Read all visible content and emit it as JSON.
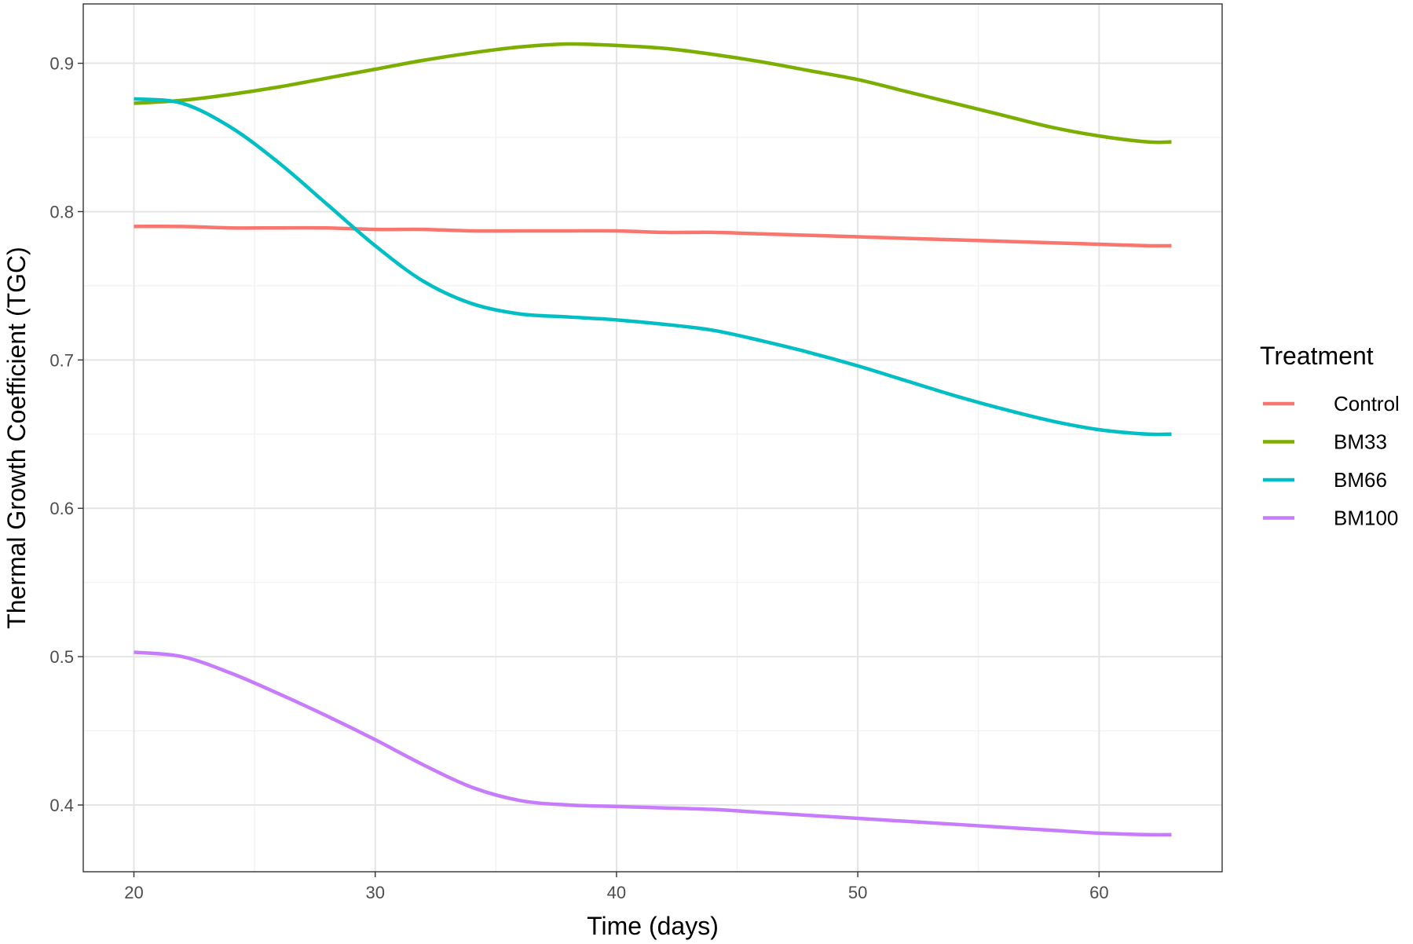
{
  "chart_data": {
    "type": "line",
    "xlabel": "Time (days)",
    "ylabel": "Thermal Growth Coefficient (TGC)",
    "xlim": [
      17.9,
      65.1
    ],
    "ylim": [
      0.355,
      0.94
    ],
    "xticks": [
      20,
      30,
      40,
      50,
      60
    ],
    "xtick_labels": [
      "20",
      "30",
      "40",
      "50",
      "60"
    ],
    "xminor": [
      25,
      35,
      45,
      55
    ],
    "yticks": [
      0.4,
      0.5,
      0.6,
      0.7,
      0.8,
      0.9
    ],
    "ytick_labels": [
      "0.4",
      "0.5",
      "0.6",
      "0.7",
      "0.8",
      "0.9"
    ],
    "yminor": [
      0.45,
      0.55,
      0.65,
      0.75,
      0.85
    ],
    "grid": true,
    "legend": {
      "title": "Treatment",
      "placement": "right"
    },
    "x": [
      20,
      22,
      24,
      26,
      28,
      30,
      32,
      34,
      36,
      38,
      40,
      42,
      44,
      46,
      48,
      50,
      52,
      54,
      56,
      58,
      60,
      62,
      63
    ],
    "series": [
      {
        "name": "Control",
        "color": "#f8766d",
        "values": [
          0.79,
          0.79,
          0.789,
          0.789,
          0.789,
          0.788,
          0.788,
          0.787,
          0.787,
          0.787,
          0.787,
          0.786,
          0.786,
          0.785,
          0.784,
          0.783,
          0.782,
          0.781,
          0.78,
          0.779,
          0.778,
          0.777,
          0.777
        ]
      },
      {
        "name": "BM33",
        "color": "#7cae00",
        "values": [
          0.873,
          0.875,
          0.879,
          0.884,
          0.89,
          0.896,
          0.902,
          0.907,
          0.911,
          0.913,
          0.912,
          0.91,
          0.906,
          0.901,
          0.895,
          0.889,
          0.881,
          0.873,
          0.865,
          0.857,
          0.851,
          0.847,
          0.847
        ]
      },
      {
        "name": "BM66",
        "color": "#00bfc4",
        "values": [
          0.876,
          0.873,
          0.857,
          0.833,
          0.805,
          0.777,
          0.753,
          0.738,
          0.731,
          0.729,
          0.727,
          0.724,
          0.72,
          0.713,
          0.705,
          0.696,
          0.686,
          0.676,
          0.667,
          0.659,
          0.653,
          0.65,
          0.65
        ]
      },
      {
        "name": "BM100",
        "color": "#c77cff",
        "values": [
          0.503,
          0.5,
          0.489,
          0.475,
          0.46,
          0.444,
          0.427,
          0.412,
          0.403,
          0.4,
          0.399,
          0.398,
          0.397,
          0.395,
          0.393,
          0.391,
          0.389,
          0.387,
          0.385,
          0.383,
          0.381,
          0.38,
          0.38
        ]
      }
    ]
  }
}
